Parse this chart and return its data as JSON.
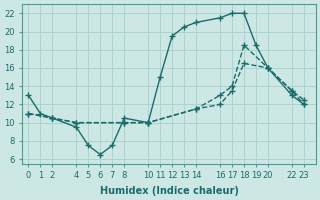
{
  "xlabel": "Humidex (Indice chaleur)",
  "bg_color": "#cde8e4",
  "grid_color": "#a8d4cf",
  "line_color": "#1a6b6b",
  "ylim": [
    5.5,
    23.0
  ],
  "xlim": [
    -0.5,
    24.0
  ],
  "yticks": [
    6,
    8,
    10,
    12,
    14,
    16,
    18,
    20,
    22
  ],
  "ytick_labels": [
    "6",
    "8",
    "10",
    "12",
    "14",
    "16",
    "18",
    "20",
    "22"
  ],
  "xticks": [
    0,
    1,
    2,
    4,
    5,
    6,
    7,
    8,
    10,
    11,
    12,
    13,
    14,
    16,
    17,
    18,
    19,
    20,
    22,
    23
  ],
  "xtick_labels": [
    "0",
    "1",
    "2",
    "4",
    "5",
    "6",
    "7",
    "8",
    "10",
    "11",
    "12",
    "13",
    "14",
    "16",
    "17",
    "18",
    "19",
    "20",
    "22",
    "23"
  ],
  "line1_x": [
    0,
    1,
    2,
    4,
    5,
    6,
    7,
    8,
    10,
    11,
    12,
    13,
    14,
    16,
    17,
    18,
    19,
    20,
    22,
    23
  ],
  "line1_y": [
    13,
    11,
    10.5,
    9.5,
    7.5,
    6.5,
    7.5,
    10.5,
    10.0,
    15.0,
    19.5,
    20.5,
    21.0,
    21.5,
    22.0,
    22.0,
    18.5,
    16.0,
    13.0,
    12.0
  ],
  "line2_x": [
    0,
    2,
    4,
    8,
    10,
    14,
    16,
    17,
    18,
    20,
    22,
    23
  ],
  "line2_y": [
    11.0,
    10.5,
    10.0,
    10.0,
    10.0,
    11.5,
    13.0,
    14.0,
    18.5,
    16.0,
    13.5,
    12.5
  ],
  "line3_x": [
    0,
    2,
    4,
    8,
    10,
    14,
    16,
    17,
    18,
    20,
    22,
    23
  ],
  "line3_y": [
    11.0,
    10.5,
    10.0,
    10.0,
    10.0,
    11.5,
    12.0,
    13.5,
    16.5,
    16.0,
    13.5,
    12.0
  ]
}
